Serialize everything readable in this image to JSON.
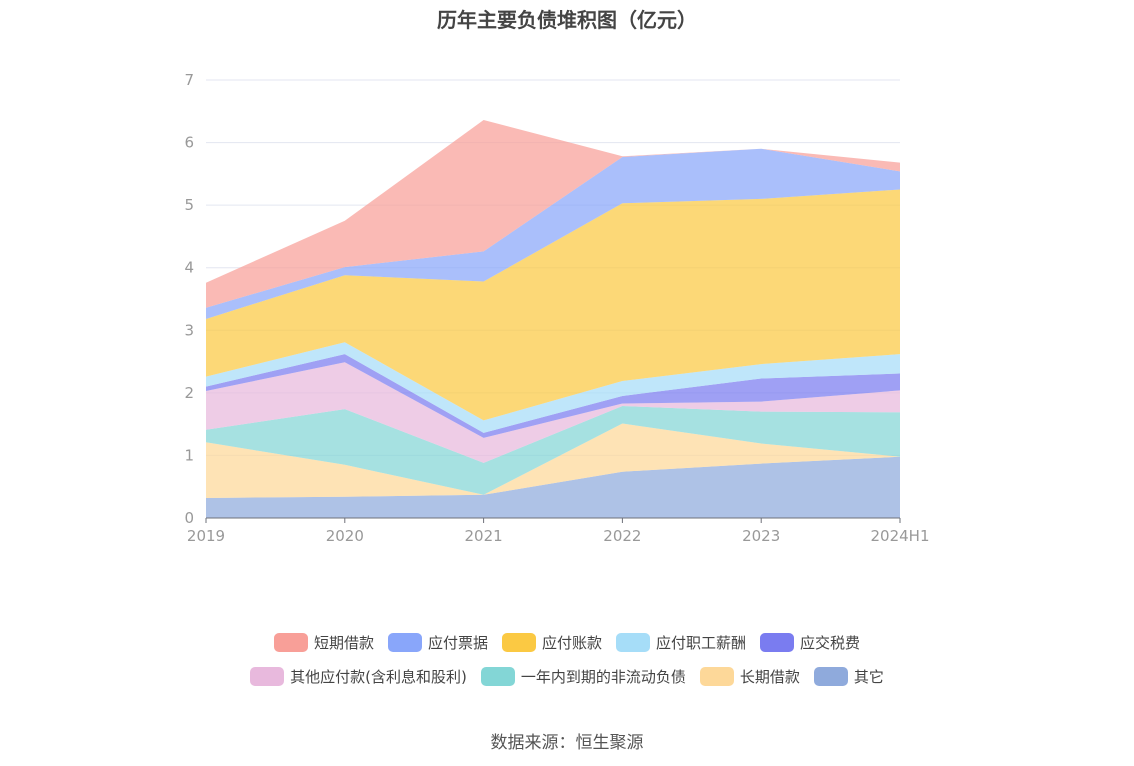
{
  "chart_data": {
    "type": "area",
    "stacked": true,
    "title": "历年主要负债堆积图（亿元）",
    "categories": [
      "2019",
      "2020",
      "2021",
      "2022",
      "2023",
      "2024H1"
    ],
    "ylim": [
      0,
      7
    ],
    "yticks": [
      "0",
      "1",
      "2",
      "3",
      "4",
      "5",
      "6",
      "7"
    ],
    "grid": true,
    "legend_position": "bottom",
    "series": [
      {
        "name": "其它",
        "color": "#8FAADC",
        "values": [
          0.32,
          0.34,
          0.37,
          0.74,
          0.87,
          0.98
        ]
      },
      {
        "name": "长期借款",
        "color": "#FDD899",
        "values": [
          0.89,
          0.51,
          0.0,
          0.77,
          0.32,
          0.0
        ]
      },
      {
        "name": "一年内到期的非流动负债",
        "color": "#83D6D6",
        "values": [
          0.2,
          0.89,
          0.51,
          0.28,
          0.51,
          0.71
        ]
      },
      {
        "name": "其他应付款(含利息和股利)",
        "color": "#E8B9DD",
        "values": [
          0.62,
          0.75,
          0.4,
          0.04,
          0.16,
          0.35
        ]
      },
      {
        "name": "应交税费",
        "color": "#7A7CF0",
        "values": [
          0.07,
          0.13,
          0.08,
          0.12,
          0.37,
          0.27
        ]
      },
      {
        "name": "应付职工薪酬",
        "color": "#A6DDF8",
        "values": [
          0.16,
          0.19,
          0.2,
          0.24,
          0.23,
          0.31
        ]
      },
      {
        "name": "应付账款",
        "color": "#FBC943",
        "values": [
          0.92,
          1.07,
          2.22,
          2.84,
          2.64,
          2.63
        ]
      },
      {
        "name": "应付票据",
        "color": "#89A6FA",
        "values": [
          0.18,
          0.13,
          0.48,
          0.74,
          0.8,
          0.29
        ]
      },
      {
        "name": "短期借款",
        "color": "#F89F98",
        "values": [
          0.4,
          0.74,
          2.1,
          0.01,
          0.0,
          0.14
        ]
      }
    ]
  },
  "legend_rows": [
    [
      "短期借款",
      "应付票据",
      "应付账款",
      "应付职工薪酬",
      "应交税费"
    ],
    [
      "其他应付款(含利息和股利)",
      "一年内到期的非流动负债",
      "长期借款",
      "其它"
    ]
  ],
  "source_text": "数据来源：恒生聚源"
}
